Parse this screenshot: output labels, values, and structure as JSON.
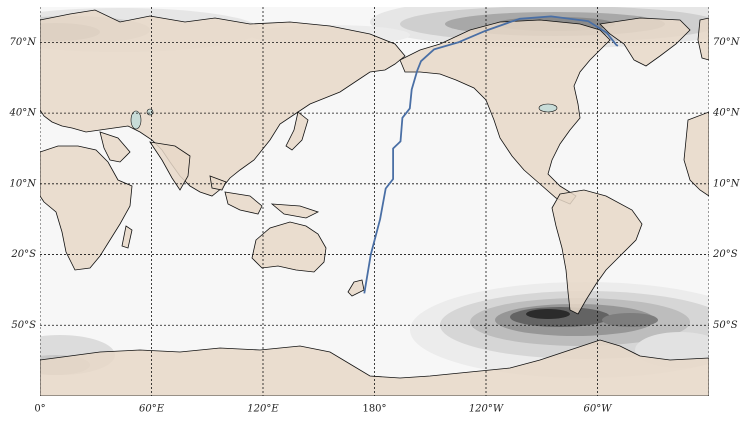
{
  "map": {
    "projection": "equirectangular",
    "central_longitude": 180,
    "extent": {
      "lon": [
        0,
        360
      ],
      "lat": [
        -90,
        90
      ]
    },
    "visible_lat_range": [
      -80,
      85
    ],
    "land_color": "#e8d8c8",
    "ocean_color": "#ffffff",
    "lake_color": "#c8dcd8",
    "gridline_style": "dotted black",
    "gridline_lats": [
      70,
      40,
      10,
      -20,
      -50
    ],
    "gridline_lons": [
      0,
      60,
      120,
      180,
      240,
      300,
      360
    ],
    "lat_labels": [
      {
        "lat": 70,
        "text": "70°N"
      },
      {
        "lat": 40,
        "text": "40°N"
      },
      {
        "lat": 10,
        "text": "10°N"
      },
      {
        "lat": -20,
        "text": "20°S"
      },
      {
        "lat": -50,
        "text": "50°S"
      }
    ],
    "lon_labels": [
      {
        "lon": 0,
        "text": "0°"
      },
      {
        "lon": 60,
        "text": "60°E"
      },
      {
        "lon": 120,
        "text": "120°E"
      },
      {
        "lon": 180,
        "text": "180°"
      },
      {
        "lon": 240,
        "text": "120°W"
      },
      {
        "lon": 300,
        "text": "60°W"
      }
    ],
    "contour_field": {
      "description_colors": [
        "#f0f0f0",
        "#dcdcdc",
        "#bdbdbd",
        "#969696",
        "#636363",
        "#2b2b2b"
      ],
      "blobs": [
        {
          "lon": 270,
          "lat": 76,
          "strength": 4
        },
        {
          "lon": 15,
          "lat": 72,
          "strength": 3
        },
        {
          "lon": 300,
          "lat": -56,
          "strength": 5
        },
        {
          "lon": 10,
          "lat": -66,
          "strength": 2
        }
      ]
    },
    "track": {
      "color": "#4a6fa5",
      "points": [
        [
          174.5,
          -36.5
        ],
        [
          178,
          -20
        ],
        [
          183,
          -5
        ],
        [
          186,
          8
        ],
        [
          190,
          12
        ],
        [
          190,
          25
        ],
        [
          194,
          28
        ],
        [
          195,
          38
        ],
        [
          199,
          42
        ],
        [
          200,
          50
        ],
        [
          203,
          58
        ],
        [
          205,
          62
        ],
        [
          212,
          67
        ],
        [
          225,
          70
        ],
        [
          240,
          75
        ],
        [
          258,
          80
        ],
        [
          275,
          81
        ],
        [
          295,
          79
        ],
        [
          305,
          74
        ],
        [
          310,
          69
        ],
        [
          311,
          68.5
        ]
      ]
    }
  }
}
